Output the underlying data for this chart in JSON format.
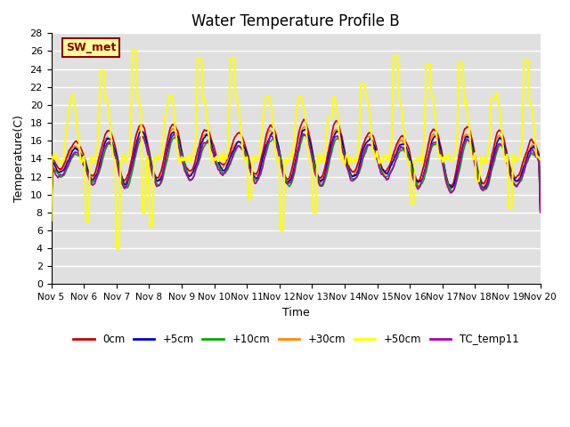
{
  "title": "Water Temperature Profile B",
  "xlabel": "Time",
  "ylabel": "Temperature(C)",
  "ylim": [
    0,
    28
  ],
  "yticks": [
    0,
    2,
    4,
    6,
    8,
    10,
    12,
    14,
    16,
    18,
    20,
    22,
    24,
    26,
    28
  ],
  "plot_bg_color": "#e0e0e0",
  "annotation_text": "SW_met",
  "annotation_color": "#8b0000",
  "annotation_bg": "#ffff99",
  "series": {
    "0cm": {
      "color": "#cc0000",
      "lw": 1.2
    },
    "+5cm": {
      "color": "#0000cc",
      "lw": 1.2
    },
    "+10cm": {
      "color": "#00aa00",
      "lw": 1.2
    },
    "+30cm": {
      "color": "#ff8800",
      "lw": 1.2
    },
    "+50cm": {
      "color": "#ffff00",
      "lw": 1.5
    },
    "TC_temp11": {
      "color": "#aa00aa",
      "lw": 1.2
    }
  },
  "x_tick_labels": [
    "Nov 5",
    "Nov 6",
    "Nov 7",
    "Nov 8",
    "Nov 9",
    "Nov 10",
    "Nov 11",
    "Nov 12",
    "Nov 13",
    "Nov 14",
    "Nov 15",
    "Nov 16",
    "Nov 17",
    "Nov 18",
    "Nov 19",
    "Nov 20"
  ],
  "n_days": 15,
  "points_per_day": 48
}
